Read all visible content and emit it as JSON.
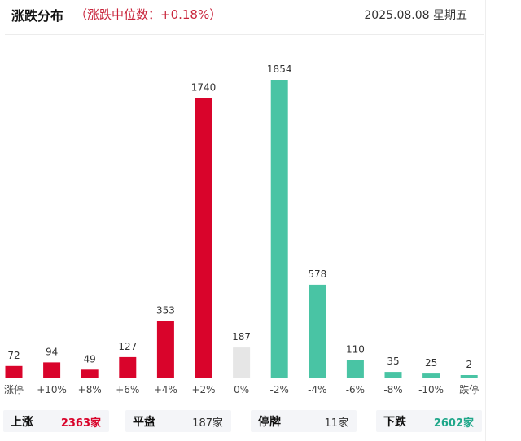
{
  "header": {
    "title": "涨跌分布",
    "subtitle": "（涨跌中位数：+0.18%）",
    "date": "2025.08.08 星期五"
  },
  "colors": {
    "up": "#d9042b",
    "flat": "#e6e6e6",
    "down": "#49c4a4",
    "up_text": "#d9042b",
    "down_text": "#20a78a"
  },
  "chart_data": {
    "type": "bar",
    "categories": [
      "涨停",
      "+10%",
      "+8%",
      "+6%",
      "+4%",
      "+2%",
      "0%",
      "-2%",
      "-4%",
      "-6%",
      "-8%",
      "-10%",
      "跌停"
    ],
    "values": [
      72,
      94,
      49,
      127,
      353,
      1740,
      187,
      1854,
      578,
      110,
      35,
      25,
      2
    ],
    "groups": [
      "up",
      "up",
      "up",
      "up",
      "up",
      "up",
      "flat",
      "down",
      "down",
      "down",
      "down",
      "down",
      "down"
    ],
    "ylim": [
      0,
      1854
    ],
    "grid": false
  },
  "stats": [
    {
      "label": "上涨",
      "value": "2363家",
      "tone": "up"
    },
    {
      "label": "平盘",
      "value": "187家",
      "tone": "neutral"
    },
    {
      "label": "停牌",
      "value": "11家",
      "tone": "neutral"
    },
    {
      "label": "下跌",
      "value": "2602家",
      "tone": "down"
    }
  ]
}
